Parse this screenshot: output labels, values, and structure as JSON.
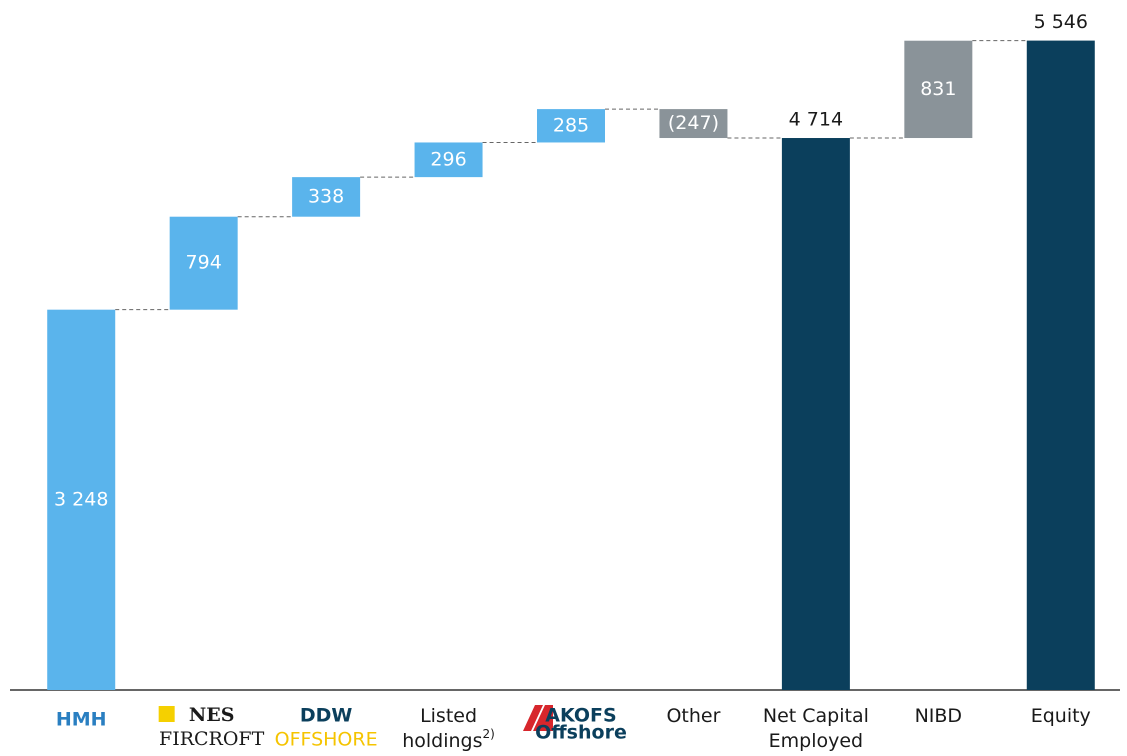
{
  "chart_data": {
    "type": "waterfall",
    "categories": [
      null,
      null,
      null,
      "Listed holdings",
      null,
      "Other",
      "Net Capital Employed",
      "NIBD",
      "Equity"
    ],
    "category_footnotes": [
      null,
      null,
      null,
      "2)",
      null,
      null,
      null,
      null,
      null
    ],
    "logos": [
      {
        "text": "HMH",
        "color": "#2a7fc1"
      },
      {
        "text": "NES",
        "subtext": "FIRCROFT",
        "color": "#1a1a1a",
        "mark_color": "#f5d000"
      },
      {
        "text": "DDW",
        "subtext": "OFFSHORE",
        "color": "#0b3f5c",
        "subcolor": "#f5c400"
      },
      null,
      {
        "text": "AKOFS",
        "subtext": "Offshore",
        "color": "#0b3f5c",
        "mark_color": "#d7262c"
      },
      null,
      null,
      null,
      null
    ],
    "values": [
      3248,
      794,
      338,
      296,
      285,
      -247,
      4714,
      831,
      5546
    ],
    "value_labels": [
      "3 248",
      "794",
      "338",
      "296",
      "285",
      "(247)",
      "4 714",
      "831",
      "5 546"
    ],
    "measure": [
      "absolute",
      "relative",
      "relative",
      "relative",
      "relative",
      "relative",
      "total",
      "relative",
      "total"
    ],
    "colors": [
      "#5ab4ec",
      "#5ab4ec",
      "#5ab4ec",
      "#5ab4ec",
      "#5ab4ec",
      "#8a9399",
      "#0b3f5c",
      "#8a9399",
      "#0b3f5c"
    ],
    "ylim": [
      0,
      5850
    ]
  }
}
